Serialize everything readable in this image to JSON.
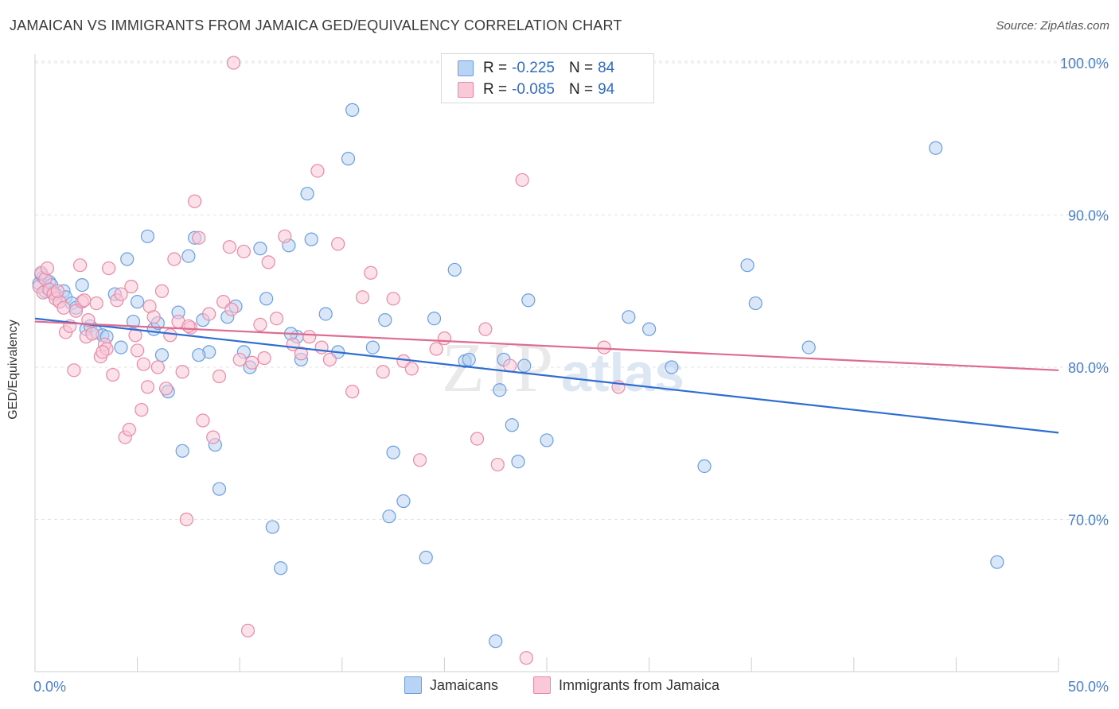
{
  "title": "JAMAICAN VS IMMIGRANTS FROM JAMAICA GED/EQUIVALENCY CORRELATION CHART",
  "source": "Source: ZipAtlas.com",
  "watermark": {
    "zip": "ZIP",
    "atlas": "atlas"
  },
  "stats": [
    {
      "r_label": "R =",
      "r_value": "-0.225",
      "n_label": "N =",
      "n_value": "84",
      "fill": "#b9d3f4",
      "stroke": "#6b9ee0"
    },
    {
      "r_label": "R =",
      "r_value": "-0.085",
      "n_label": "N =",
      "n_value": "94",
      "fill": "#f9c9d7",
      "stroke": "#e98aa8"
    }
  ],
  "legend": [
    {
      "label": "Jamaicans",
      "fill": "#b9d3f4",
      "stroke": "#6b9ee0"
    },
    {
      "label": "Immigrants from Jamaica",
      "fill": "#f9c9d7",
      "stroke": "#e98aa8"
    }
  ],
  "chart_data": {
    "type": "scatter",
    "title": "JAMAICAN VS IMMIGRANTS FROM JAMAICA GED/EQUIVALENCY CORRELATION CHART",
    "xlabel": "",
    "ylabel": "GED/Equivalency",
    "xlim": [
      0,
      50
    ],
    "ylim": [
      60,
      102
    ],
    "x_tick_labels": [
      "0.0%",
      "50.0%"
    ],
    "y_ticks": [
      70,
      80,
      90,
      100
    ],
    "y_tick_labels": [
      "70.0%",
      "80.0%",
      "90.0%",
      "100.0%"
    ],
    "grid": true,
    "series": [
      {
        "name": "Jamaicans",
        "color": "#6b9ee0",
        "fill": "#b9d3f4",
        "trend": {
          "x": [
            0,
            50
          ],
          "y": [
            83.2,
            75.7
          ],
          "color": "#2f6ed0"
        },
        "points": [
          [
            0.2,
            85.5
          ],
          [
            0.4,
            85.9
          ],
          [
            0.5,
            85.0
          ],
          [
            0.6,
            85.2
          ],
          [
            0.7,
            85.6
          ],
          [
            0.8,
            85.4
          ],
          [
            1.0,
            84.8
          ],
          [
            1.2,
            84.3
          ],
          [
            1.4,
            85.0
          ],
          [
            1.5,
            84.6
          ],
          [
            1.8,
            84.2
          ],
          [
            2.0,
            83.9
          ],
          [
            2.3,
            85.4
          ],
          [
            2.5,
            82.5
          ],
          [
            2.7,
            82.7
          ],
          [
            3.0,
            82.3
          ],
          [
            3.3,
            82.1
          ],
          [
            3.5,
            82.0
          ],
          [
            4.2,
            81.3
          ],
          [
            4.5,
            87.1
          ],
          [
            4.8,
            83.0
          ],
          [
            5.0,
            84.3
          ],
          [
            5.5,
            88.6
          ],
          [
            5.8,
            82.5
          ],
          [
            6.0,
            82.9
          ],
          [
            6.2,
            80.8
          ],
          [
            6.5,
            78.4
          ],
          [
            7.0,
            83.6
          ],
          [
            7.2,
            74.5
          ],
          [
            7.5,
            87.3
          ],
          [
            7.8,
            88.5
          ],
          [
            8.2,
            83.1
          ],
          [
            8.5,
            81.0
          ],
          [
            8.8,
            74.9
          ],
          [
            9.0,
            72.0
          ],
          [
            9.4,
            83.3
          ],
          [
            9.8,
            84.0
          ],
          [
            10.2,
            81.0
          ],
          [
            10.5,
            80.0
          ],
          [
            11.0,
            87.8
          ],
          [
            11.3,
            84.5
          ],
          [
            11.6,
            69.5
          ],
          [
            12.0,
            66.8
          ],
          [
            12.4,
            88.0
          ],
          [
            12.8,
            82.0
          ],
          [
            13.0,
            80.5
          ],
          [
            13.3,
            91.4
          ],
          [
            13.5,
            88.4
          ],
          [
            14.2,
            83.5
          ],
          [
            14.8,
            81.0
          ],
          [
            15.3,
            93.7
          ],
          [
            15.5,
            96.9
          ],
          [
            16.5,
            81.3
          ],
          [
            17.1,
            83.1
          ],
          [
            17.3,
            70.2
          ],
          [
            17.5,
            74.4
          ],
          [
            18.0,
            71.2
          ],
          [
            19.1,
            67.5
          ],
          [
            19.5,
            83.2
          ],
          [
            20.5,
            86.4
          ],
          [
            21.0,
            80.4
          ],
          [
            21.2,
            80.5
          ],
          [
            22.5,
            62.0
          ],
          [
            22.7,
            78.5
          ],
          [
            22.9,
            80.5
          ],
          [
            23.3,
            76.2
          ],
          [
            23.6,
            73.8
          ],
          [
            23.9,
            80.1
          ],
          [
            24.1,
            84.4
          ],
          [
            25.0,
            75.2
          ],
          [
            29.0,
            83.3
          ],
          [
            30.0,
            82.5
          ],
          [
            31.1,
            80.0
          ],
          [
            32.7,
            73.5
          ],
          [
            34.8,
            86.7
          ],
          [
            35.2,
            84.2
          ],
          [
            37.8,
            81.3
          ],
          [
            44.0,
            94.4
          ],
          [
            47.0,
            67.2
          ],
          [
            0.3,
            86.1
          ],
          [
            0.9,
            84.9
          ],
          [
            3.9,
            84.8
          ],
          [
            8.0,
            80.8
          ],
          [
            12.5,
            82.2
          ]
        ]
      },
      {
        "name": "Immigrants from Jamaica",
        "color": "#e98aa8",
        "fill": "#f9c9d7",
        "trend": {
          "x": [
            0,
            50
          ],
          "y": [
            83.0,
            79.8
          ],
          "color": "#de6b90"
        },
        "points": [
          [
            0.2,
            85.3
          ],
          [
            0.3,
            86.2
          ],
          [
            0.4,
            84.9
          ],
          [
            0.5,
            85.8
          ],
          [
            0.7,
            85.1
          ],
          [
            0.9,
            84.8
          ],
          [
            1.0,
            84.5
          ],
          [
            1.2,
            84.3
          ],
          [
            1.4,
            83.9
          ],
          [
            1.5,
            82.3
          ],
          [
            1.7,
            82.7
          ],
          [
            1.9,
            79.8
          ],
          [
            2.0,
            83.7
          ],
          [
            2.2,
            86.7
          ],
          [
            2.3,
            84.3
          ],
          [
            2.5,
            82.0
          ],
          [
            2.6,
            83.1
          ],
          [
            2.8,
            82.2
          ],
          [
            3.0,
            84.2
          ],
          [
            3.2,
            80.7
          ],
          [
            3.4,
            81.5
          ],
          [
            3.5,
            81.2
          ],
          [
            3.6,
            86.5
          ],
          [
            3.8,
            79.5
          ],
          [
            4.0,
            84.4
          ],
          [
            4.2,
            84.8
          ],
          [
            4.4,
            75.4
          ],
          [
            4.6,
            75.9
          ],
          [
            4.7,
            85.3
          ],
          [
            4.9,
            82.1
          ],
          [
            5.0,
            81.1
          ],
          [
            5.2,
            77.2
          ],
          [
            5.3,
            80.2
          ],
          [
            5.5,
            78.7
          ],
          [
            5.6,
            84.0
          ],
          [
            6.0,
            80.0
          ],
          [
            6.2,
            85.0
          ],
          [
            6.4,
            78.6
          ],
          [
            6.6,
            82.1
          ],
          [
            6.8,
            87.1
          ],
          [
            7.0,
            83.0
          ],
          [
            7.2,
            79.7
          ],
          [
            7.4,
            70.0
          ],
          [
            7.6,
            82.6
          ],
          [
            7.8,
            90.9
          ],
          [
            8.0,
            88.5
          ],
          [
            8.2,
            76.5
          ],
          [
            8.5,
            83.5
          ],
          [
            8.7,
            75.4
          ],
          [
            9.0,
            79.4
          ],
          [
            9.2,
            84.3
          ],
          [
            9.5,
            87.9
          ],
          [
            9.7,
            100.0
          ],
          [
            10.0,
            80.5
          ],
          [
            10.2,
            87.6
          ],
          [
            10.4,
            62.7
          ],
          [
            10.6,
            80.3
          ],
          [
            11.0,
            82.8
          ],
          [
            11.4,
            86.9
          ],
          [
            11.8,
            83.2
          ],
          [
            12.2,
            88.6
          ],
          [
            12.6,
            81.5
          ],
          [
            13.0,
            80.9
          ],
          [
            13.4,
            82.0
          ],
          [
            13.8,
            92.9
          ],
          [
            14.0,
            81.3
          ],
          [
            14.4,
            80.5
          ],
          [
            14.8,
            88.1
          ],
          [
            15.5,
            78.4
          ],
          [
            16.0,
            84.6
          ],
          [
            16.4,
            86.2
          ],
          [
            17.0,
            79.7
          ],
          [
            17.5,
            84.5
          ],
          [
            18.0,
            80.4
          ],
          [
            18.4,
            79.9
          ],
          [
            18.8,
            73.9
          ],
          [
            19.6,
            81.2
          ],
          [
            20.0,
            81.9
          ],
          [
            21.6,
            75.3
          ],
          [
            22.0,
            82.5
          ],
          [
            22.6,
            73.6
          ],
          [
            23.2,
            80.1
          ],
          [
            23.8,
            92.3
          ],
          [
            24.0,
            60.9
          ],
          [
            27.8,
            81.3
          ],
          [
            28.5,
            78.7
          ],
          [
            0.6,
            86.5
          ],
          [
            1.1,
            85.0
          ],
          [
            2.4,
            84.4
          ],
          [
            3.3,
            81.0
          ],
          [
            5.8,
            83.3
          ],
          [
            7.5,
            82.7
          ],
          [
            9.6,
            83.8
          ],
          [
            11.2,
            80.6
          ]
        ]
      }
    ]
  }
}
